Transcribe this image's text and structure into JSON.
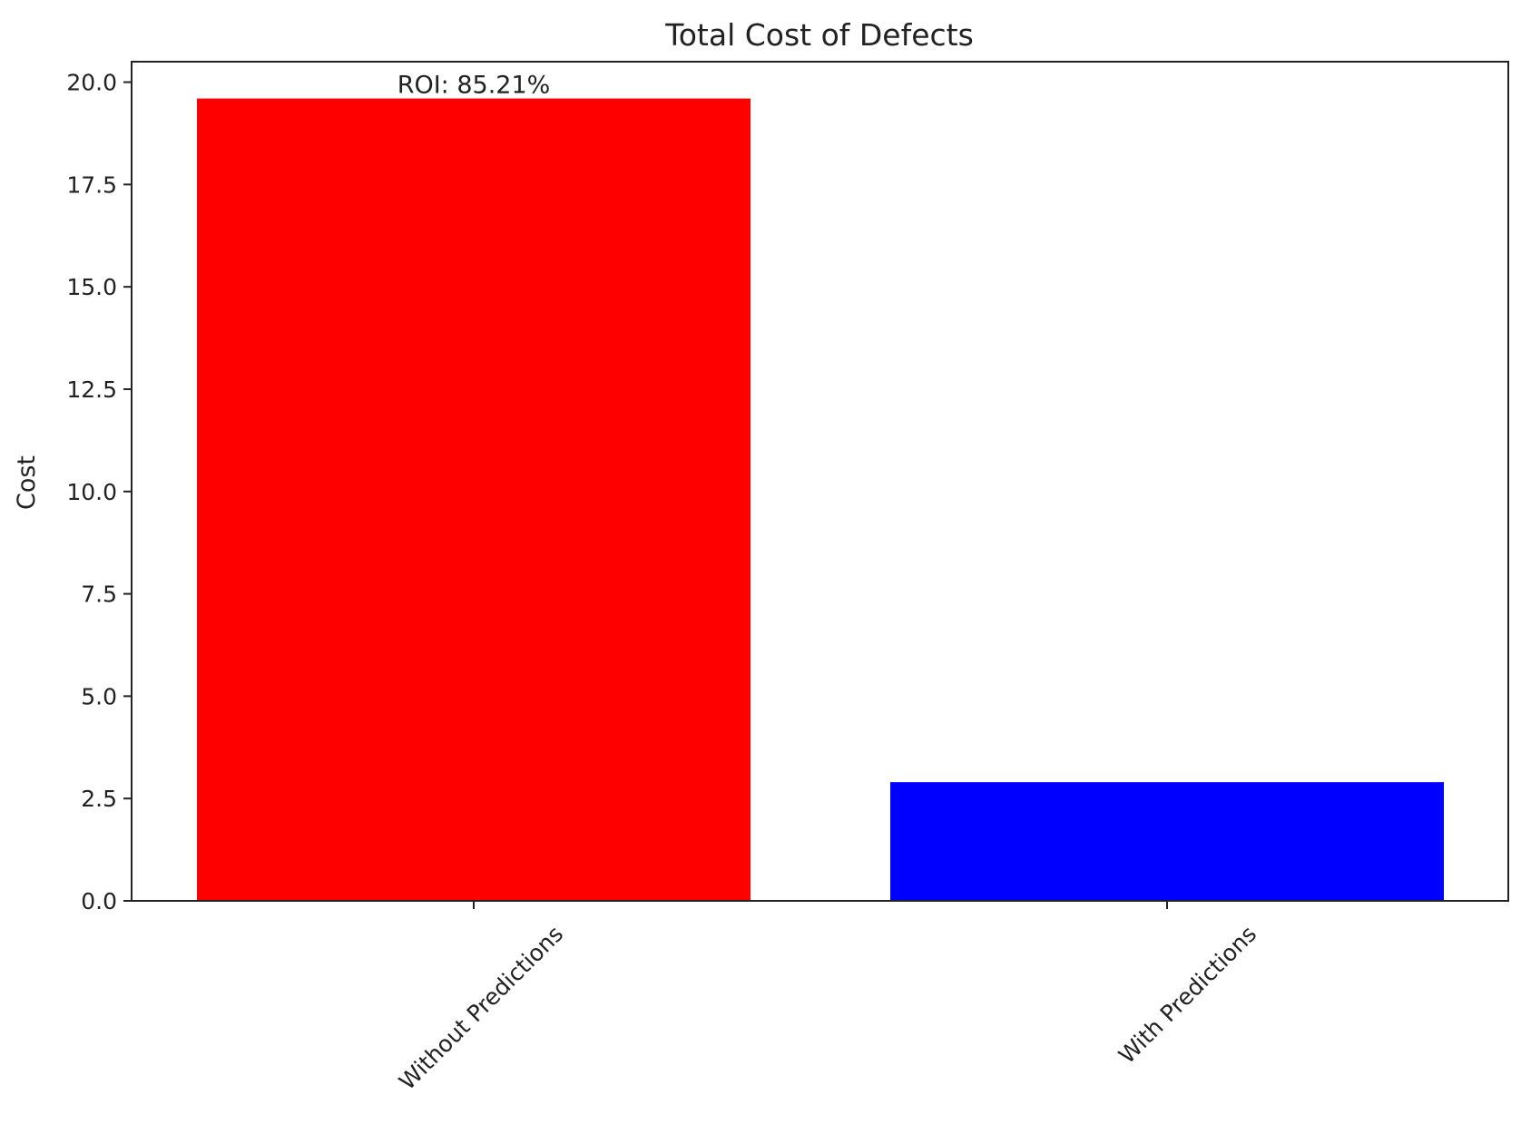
{
  "chart_data": {
    "type": "bar",
    "title": "Total Cost of Defects",
    "xlabel": "",
    "ylabel": "Cost",
    "categories": [
      "Without Predictions",
      "With Predictions"
    ],
    "values": [
      19.6,
      2.9
    ],
    "colors": [
      "#ff0000",
      "#0000ff"
    ],
    "ylim": [
      0,
      20.5
    ],
    "yticks": [
      0.0,
      2.5,
      5.0,
      7.5,
      10.0,
      12.5,
      15.0,
      17.5,
      20.0
    ],
    "ytick_labels": [
      "0.0",
      "2.5",
      "5.0",
      "7.5",
      "10.0",
      "12.5",
      "15.0",
      "17.5",
      "20.0"
    ],
    "xtick_rotation_deg": 45,
    "grid": false,
    "annotations": [
      {
        "text": "ROI: 85.21%",
        "category": "Without Predictions"
      }
    ]
  }
}
